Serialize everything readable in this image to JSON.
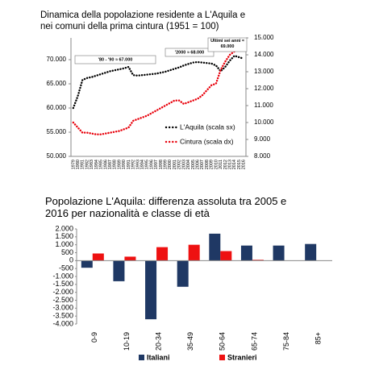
{
  "chart_data": [
    {
      "type": "line",
      "title": "Dinamica della popolazione residente a L'Aquila e nei comuni della prima cintura (1951 = 100)",
      "categories": [
        "1979",
        "1980",
        "1981",
        "1982",
        "1983",
        "1984",
        "1985",
        "1986",
        "1987",
        "1988",
        "1989",
        "1990",
        "1991",
        "1992",
        "1993",
        "1994",
        "1995",
        "1996",
        "1997",
        "1998",
        "1999",
        "2000",
        "2001",
        "2002",
        "2003",
        "2004",
        "2005",
        "2006",
        "2007",
        "2008",
        "2009",
        "2010",
        "2011",
        "2012",
        "2013",
        "2014",
        "2015",
        "2016"
      ],
      "series": [
        {
          "name": "L'Aquila (scala sx)",
          "color": "#000000",
          "axis": "y",
          "values": [
            60000,
            62500,
            65800,
            66200,
            66400,
            66700,
            67000,
            67300,
            67600,
            67800,
            68000,
            68200,
            68500,
            66800,
            66700,
            66800,
            66900,
            67000,
            67100,
            67300,
            67500,
            67800,
            68100,
            68400,
            68800,
            69100,
            69400,
            69500,
            69400,
            69300,
            69200,
            68800,
            67600,
            68500,
            69800,
            70800,
            70500,
            70200
          ]
        },
        {
          "name": "Cintura (scala dx)",
          "color": "#e8000b",
          "axis": "y2",
          "values": [
            10000,
            9700,
            9400,
            9400,
            9350,
            9300,
            9300,
            9350,
            9400,
            9450,
            9500,
            9600,
            9700,
            10100,
            10200,
            10300,
            10400,
            10550,
            10700,
            10850,
            11000,
            11150,
            11300,
            11300,
            11100,
            11200,
            11300,
            11400,
            11600,
            11900,
            12200,
            12300,
            13100,
            13600,
            14000,
            14200,
            14300,
            14400
          ]
        }
      ],
      "annotations": [
        "'80 - '90 ≈ 67.000",
        "'2000 ≈ 68.000",
        "Ultimi sei anni ≈ 69.000"
      ],
      "ylim": [
        50000,
        74500
      ],
      "yticks": [
        {
          "value": 50000,
          "label": "50.000"
        },
        {
          "value": 55000,
          "label": "55.000"
        },
        {
          "value": 60000,
          "label": "60.000"
        },
        {
          "value": 65000,
          "label": "65.000"
        },
        {
          "value": 70000,
          "label": "70.000"
        }
      ],
      "y2lim": [
        8000,
        15000
      ],
      "y2ticks": [
        {
          "value": 8000,
          "label": "8.000"
        },
        {
          "value": 9000,
          "label": "9.000"
        },
        {
          "value": 10000,
          "label": "10.000"
        },
        {
          "value": 11000,
          "label": "11.000"
        },
        {
          "value": 12000,
          "label": "12.000"
        },
        {
          "value": 13000,
          "label": "13.000"
        },
        {
          "value": 14000,
          "label": "14.000"
        },
        {
          "value": 15000,
          "label": "15.000"
        }
      ]
    },
    {
      "type": "bar",
      "title": "Popolazione L'Aquila: differenza assoluta tra 2005 e 2016 per nazionalità e classe di età",
      "categories": [
        "0-9",
        "10-19",
        "20-34",
        "35-49",
        "50-64",
        "65-74",
        "75-84",
        "85+"
      ],
      "series": [
        {
          "name": "Italiani",
          "color": "#1f3864",
          "values": [
            -450,
            -1300,
            -3700,
            -1650,
            1700,
            950,
            950,
            1050
          ]
        },
        {
          "name": "Stranieri",
          "color": "#ee1111",
          "values": [
            450,
            250,
            850,
            1000,
            600,
            50,
            0,
            0
          ]
        }
      ],
      "ylim": [
        -4000,
        2000
      ],
      "yticks": [
        {
          "value": 2000,
          "label": "2.000"
        },
        {
          "value": 1500,
          "label": "1.500"
        },
        {
          "value": 1000,
          "label": "1.000"
        },
        500,
        0,
        -500,
        {
          "value": -1000,
          "label": "-1.000"
        },
        {
          "value": -1500,
          "label": "-1.500"
        },
        {
          "value": -2000,
          "label": "-2.000"
        },
        {
          "value": -2500,
          "label": "-2.500"
        },
        {
          "value": -3000,
          "label": "-3.000"
        },
        {
          "value": -3500,
          "label": "-3.500"
        },
        {
          "value": -4000,
          "label": "-4.000"
        }
      ]
    }
  ]
}
